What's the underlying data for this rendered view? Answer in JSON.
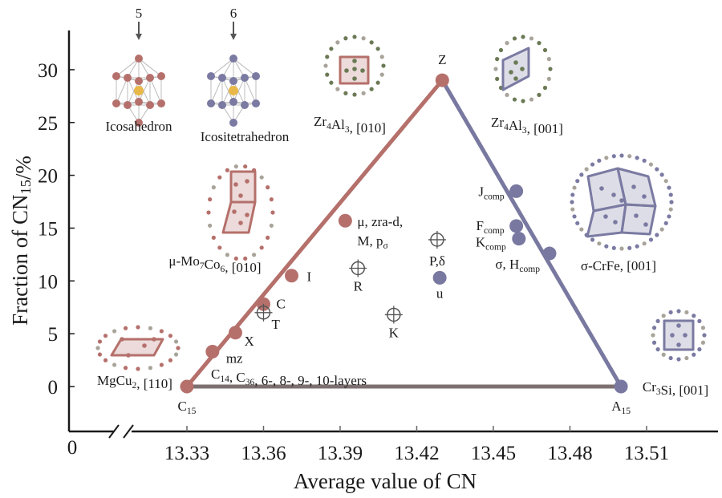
{
  "chart_data": {
    "type": "scatter",
    "title": "",
    "xlabel": "Average value of CN",
    "ylabel": [
      {
        "t": "Fraction of CN"
      },
      {
        "s": "15"
      },
      {
        "t": "/%"
      }
    ],
    "xlim": [
      13.33,
      13.51
    ],
    "ylim": [
      0,
      30
    ],
    "x_ticks": [
      "13.33",
      "13.36",
      "13.39",
      "13.42",
      "13.45",
      "13.48",
      "13.51"
    ],
    "x_tick_values": [
      13.33,
      13.36,
      13.39,
      13.42,
      13.45,
      13.48,
      13.51
    ],
    "x_origin_label": "0",
    "x_axis_break": true,
    "y_ticks": [
      "0",
      "5",
      "10",
      "15",
      "20",
      "25",
      "30"
    ],
    "y_tick_values": [
      0,
      5,
      10,
      15,
      20,
      25,
      30
    ],
    "grid": false,
    "colors": {
      "red": "#b5706b",
      "blue": "#7878a0",
      "base": "#7d7070",
      "axis": "#1a1a1a",
      "open_marker": "#555555"
    },
    "triangle": {
      "vertices": [
        {
          "name": "C15",
          "x": 13.33,
          "y": 0
        },
        {
          "name": "Z",
          "x": 13.43,
          "y": 29
        },
        {
          "name": "A15",
          "x": 13.5,
          "y": 0
        }
      ],
      "base_label": [
        {
          "t": "C"
        },
        {
          "s": "14"
        },
        {
          "t": ", C"
        },
        {
          "s": "36"
        },
        {
          "t": ", 6-, 8-, 9-, 10-layers"
        }
      ]
    },
    "series": [
      {
        "marker": "filled",
        "color": "red",
        "points": [
          {
            "label": [
              {
                "t": "C"
              },
              {
                "s": "15"
              }
            ],
            "x": 13.33,
            "y": 0
          },
          {
            "label": [
              {
                "t": "mz"
              }
            ],
            "x": 13.34,
            "y": 3.3
          },
          {
            "label": [
              {
                "t": "X"
              }
            ],
            "x": 13.349,
            "y": 5.1
          },
          {
            "label": [
              {
                "t": "C"
              }
            ],
            "x": 13.36,
            "y": 7.8
          },
          {
            "label": [
              {
                "t": "I"
              }
            ],
            "x": 13.371,
            "y": 10.5
          },
          {
            "label": [
              {
                "t": "μ, zra-d,"
              }
            ],
            "label2": [
              {
                "t": "M, p"
              },
              {
                "s": "σ"
              }
            ],
            "x": 13.392,
            "y": 15.7
          },
          {
            "label": [
              {
                "t": "Z"
              }
            ],
            "x": 13.43,
            "y": 29
          }
        ]
      },
      {
        "marker": "filled",
        "color": "blue",
        "points": [
          {
            "label": [
              {
                "t": "u"
              }
            ],
            "x": 13.429,
            "y": 10.3
          },
          {
            "label": [
              {
                "t": "J"
              },
              {
                "s": "comp"
              }
            ],
            "x": 13.459,
            "y": 18.5
          },
          {
            "label": [
              {
                "t": "F"
              },
              {
                "s": "comp"
              }
            ],
            "x": 13.459,
            "y": 15.2
          },
          {
            "label": [
              {
                "t": "K"
              },
              {
                "s": "comp"
              }
            ],
            "x": 13.46,
            "y": 14.0
          },
          {
            "label": [
              {
                "t": "σ, H"
              },
              {
                "s": "comp"
              }
            ],
            "x": 13.472,
            "y": 12.6
          },
          {
            "label": [
              {
                "t": "A"
              },
              {
                "s": "15"
              }
            ],
            "x": 13.5,
            "y": 0
          }
        ]
      },
      {
        "marker": "open-crosshair",
        "color": "open_marker",
        "points": [
          {
            "label": [
              {
                "t": "T"
              }
            ],
            "x": 13.36,
            "y": 7.0
          },
          {
            "label": [
              {
                "t": "R"
              }
            ],
            "x": 13.397,
            "y": 11.2
          },
          {
            "label": [
              {
                "t": "K"
              }
            ],
            "x": 13.411,
            "y": 6.8
          },
          {
            "label": [
              {
                "t": "P,δ"
              }
            ],
            "x": 13.428,
            "y": 13.9
          }
        ]
      }
    ]
  },
  "insets": {
    "icosahedron": {
      "number": "5",
      "caption": [
        {
          "t": "Icosahedron"
        }
      ]
    },
    "icositetrahedron": {
      "number": "6",
      "caption": [
        {
          "t": "Icositetrahedron"
        }
      ]
    },
    "zr4al3_010": {
      "caption": [
        {
          "t": "Zr"
        },
        {
          "s": "4"
        },
        {
          "t": "Al"
        },
        {
          "s": "3"
        },
        {
          "t": ", [010]"
        }
      ]
    },
    "zr4al3_001": {
      "caption": [
        {
          "t": "Zr"
        },
        {
          "s": "4"
        },
        {
          "t": "Al"
        },
        {
          "s": "3"
        },
        {
          "t": ", [001]"
        }
      ]
    },
    "mu_mo7co6": {
      "caption": [
        {
          "t": "μ-Mo"
        },
        {
          "s": "7"
        },
        {
          "t": "Co"
        },
        {
          "s": "6"
        },
        {
          "t": ", [010]"
        }
      ]
    },
    "sigma_crfe": {
      "caption": [
        {
          "t": "σ-CrFe, [001]"
        }
      ]
    },
    "mgcu2": {
      "caption": [
        {
          "t": "MgCu"
        },
        {
          "s": "2"
        },
        {
          "t": ", [110]"
        }
      ]
    },
    "cr3si": {
      "caption": [
        {
          "t": "Cr"
        },
        {
          "s": "3"
        },
        {
          "t": "Si, [001]"
        }
      ]
    }
  }
}
